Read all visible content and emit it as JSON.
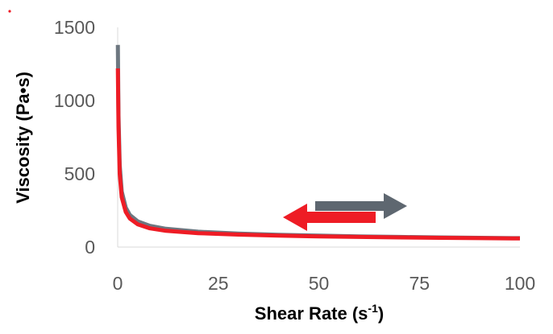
{
  "chart_data": {
    "type": "line",
    "title": "",
    "xlabel": "Shear Rate (s",
    "xlabel_sup": "-1",
    "xlabel_close": ")",
    "ylabel": "Viscosity (Pa•s)",
    "xlim": [
      0,
      100
    ],
    "ylim": [
      0,
      1500
    ],
    "x_ticks": [
      0,
      25,
      50,
      75,
      100
    ],
    "y_ticks": [
      0,
      500,
      1000,
      1500
    ],
    "grid": false,
    "legend": "none",
    "series": [
      {
        "color": "#6d7780",
        "points": [
          [
            0.05,
            1380
          ],
          [
            0.2,
            900
          ],
          [
            0.5,
            560
          ],
          [
            1,
            380
          ],
          [
            2,
            270
          ],
          [
            3,
            220
          ],
          [
            5,
            175
          ],
          [
            8,
            145
          ],
          [
            12,
            125
          ],
          [
            20,
            105
          ],
          [
            30,
            92
          ],
          [
            40,
            84
          ],
          [
            50,
            78
          ],
          [
            60,
            73
          ],
          [
            70,
            69
          ],
          [
            80,
            66
          ],
          [
            90,
            63
          ],
          [
            100,
            61
          ]
        ]
      },
      {
        "color": "#ee1c25",
        "points": [
          [
            0.05,
            1220
          ],
          [
            0.2,
            820
          ],
          [
            0.5,
            500
          ],
          [
            1,
            340
          ],
          [
            2,
            240
          ],
          [
            3,
            195
          ],
          [
            5,
            155
          ],
          [
            8,
            128
          ],
          [
            12,
            111
          ],
          [
            20,
            95
          ],
          [
            30,
            85
          ],
          [
            40,
            78
          ],
          [
            50,
            73
          ],
          [
            60,
            69
          ],
          [
            70,
            66
          ],
          [
            80,
            63
          ],
          [
            90,
            61
          ],
          [
            100,
            59
          ]
        ]
      }
    ],
    "annotations": [
      {
        "type": "arrow",
        "direction": "right",
        "color": "#5e6770",
        "meaning": "increasing shear rate"
      },
      {
        "type": "arrow",
        "direction": "left",
        "color": "#ee1c25",
        "meaning": "decreasing shear rate"
      }
    ]
  }
}
